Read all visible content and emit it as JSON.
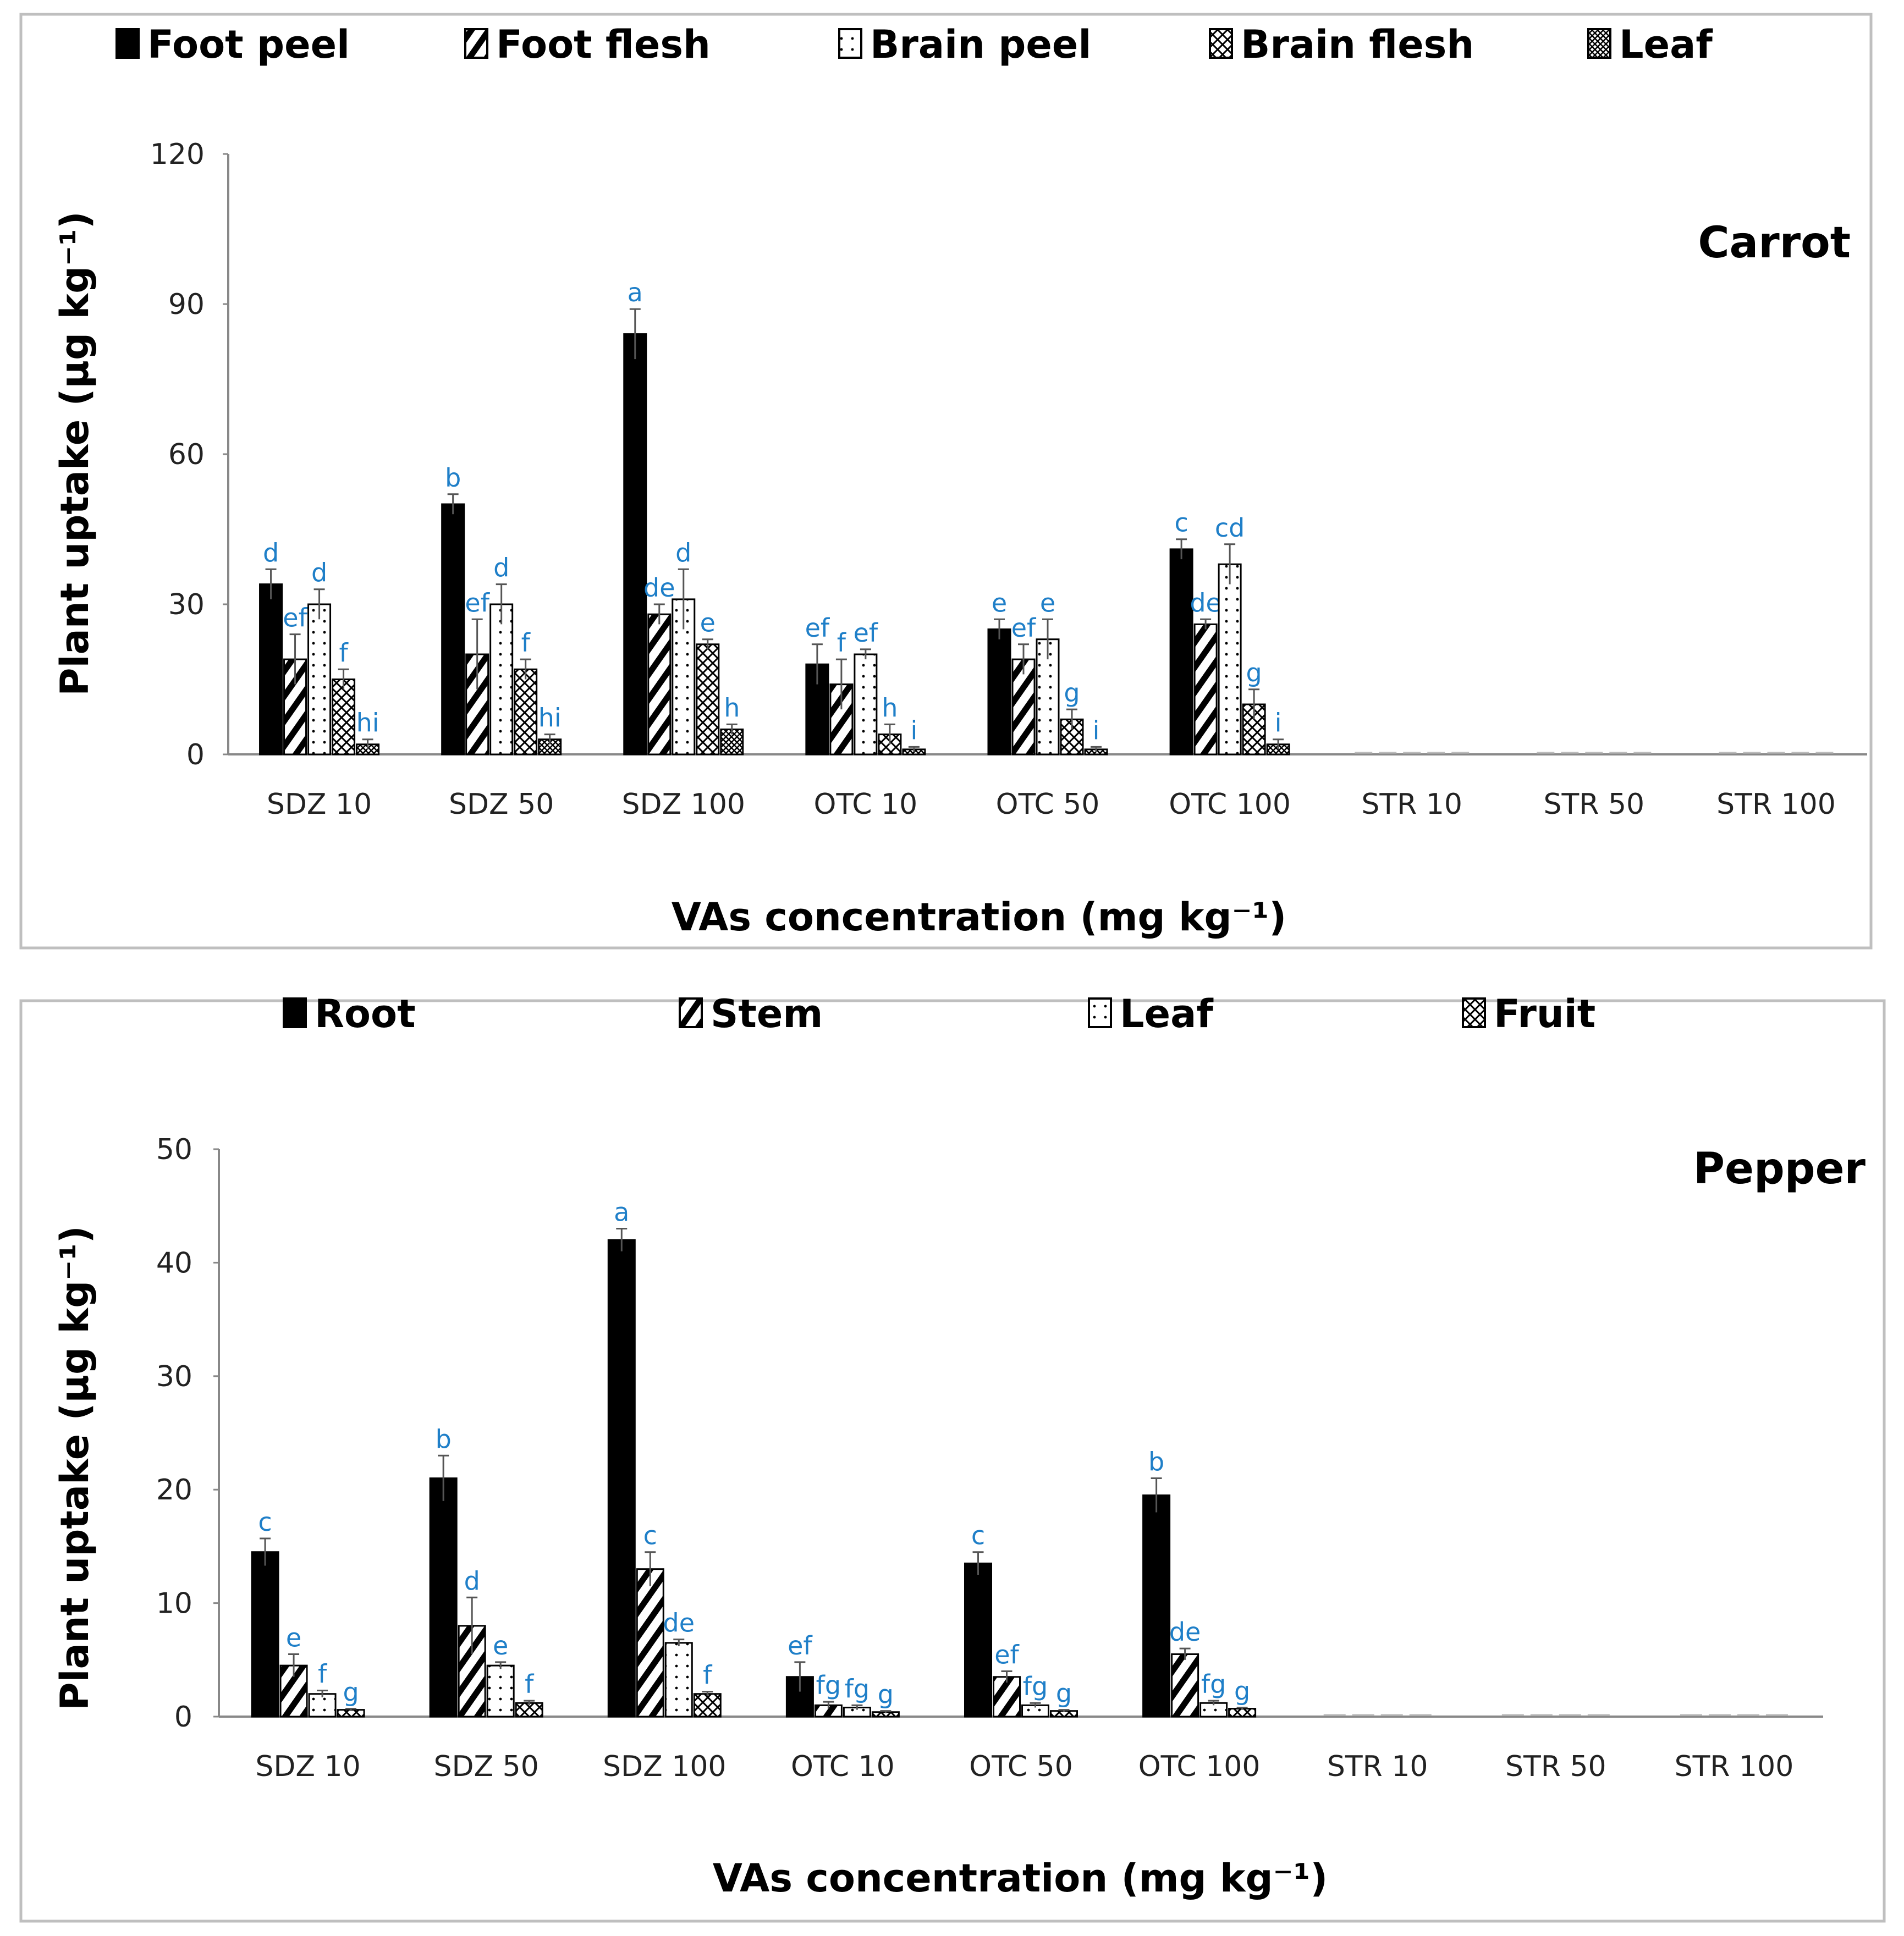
{
  "colors": {
    "bar": "#000000",
    "letter": "#1f7fc8",
    "axis": "#888888",
    "frame": "#bfbfbf",
    "error": "#555555"
  },
  "chart_data": [
    {
      "type": "bar",
      "title": "Carrot",
      "xlabel": "VAs concentration (mg kg⁻¹)",
      "ylabel": "Plant uptake (µg kg⁻¹)",
      "ylim": [
        0,
        120
      ],
      "yticks": [
        "0",
        "30",
        "60",
        "90",
        "120"
      ],
      "legend_position": "top",
      "categories": [
        "SDZ 10",
        "SDZ 50",
        "SDZ 100",
        "OTC 10",
        "OTC 50",
        "OTC 100",
        "STR 10",
        "STR 50",
        "STR 100"
      ],
      "series": [
        {
          "name": "Foot peel",
          "pattern": "solid",
          "values": [
            34,
            50,
            84,
            18,
            25,
            41,
            0,
            0,
            0
          ],
          "errors": [
            3,
            2,
            5,
            4,
            2,
            2,
            0,
            0,
            0
          ],
          "letters": [
            "d",
            "b",
            "a",
            "ef",
            "e",
            "c",
            "",
            "",
            ""
          ]
        },
        {
          "name": "Foot flesh",
          "pattern": "diag",
          "values": [
            19,
            20,
            28,
            14,
            19,
            26,
            0,
            0,
            0
          ],
          "errors": [
            5,
            7,
            2,
            5,
            3,
            1,
            0,
            0,
            0
          ],
          "letters": [
            "ef",
            "ef",
            "de",
            "f",
            "ef",
            "de",
            "",
            "",
            ""
          ]
        },
        {
          "name": "Brain peel",
          "pattern": "dots",
          "values": [
            30,
            30,
            31,
            20,
            23,
            38,
            0,
            0,
            0
          ],
          "errors": [
            3,
            4,
            6,
            1,
            4,
            4,
            0,
            0,
            0
          ],
          "letters": [
            "d",
            "d",
            "d",
            "ef",
            "e",
            "cd",
            "",
            "",
            ""
          ]
        },
        {
          "name": "Brain flesh",
          "pattern": "cross",
          "values": [
            15,
            17,
            22,
            4,
            7,
            10,
            0,
            0,
            0
          ],
          "errors": [
            2,
            2,
            1,
            2,
            2,
            3,
            0,
            0,
            0
          ],
          "letters": [
            "f",
            "f",
            "e",
            "h",
            "g",
            "g",
            "",
            "",
            ""
          ]
        },
        {
          "name": "Leaf",
          "pattern": "grid",
          "values": [
            2,
            3,
            5,
            1,
            1,
            2,
            0,
            0,
            0
          ],
          "errors": [
            1,
            1,
            1,
            0.5,
            0.5,
            1,
            0,
            0,
            0
          ],
          "letters": [
            "hi",
            "hi",
            "h",
            "i",
            "i",
            "i",
            "",
            "",
            ""
          ]
        }
      ]
    },
    {
      "type": "bar",
      "title": "Pepper",
      "xlabel": "VAs concentration (mg kg⁻¹)",
      "ylabel": "Plant uptake (µg kg⁻¹)",
      "ylim": [
        0,
        50
      ],
      "yticks": [
        "0",
        "10",
        "20",
        "30",
        "40",
        "50"
      ],
      "legend_position": "top",
      "categories": [
        "SDZ 10",
        "SDZ 50",
        "SDZ 100",
        "OTC 10",
        "OTC 50",
        "OTC 100",
        "STR 10",
        "STR 50",
        "STR 100"
      ],
      "series": [
        {
          "name": "Root",
          "pattern": "solid",
          "values": [
            14.5,
            21,
            42,
            3.5,
            13.5,
            19.5,
            0,
            0,
            0
          ],
          "errors": [
            1.2,
            2,
            1,
            1.3,
            1,
            1.5,
            0,
            0,
            0
          ],
          "letters": [
            "c",
            "b",
            "a",
            "ef",
            "c",
            "b",
            "",
            "",
            ""
          ]
        },
        {
          "name": "Stem",
          "pattern": "diag",
          "values": [
            4.5,
            8,
            13,
            1,
            3.5,
            5.5,
            0,
            0,
            0
          ],
          "errors": [
            1,
            2.5,
            1.5,
            0.3,
            0.5,
            0.5,
            0,
            0,
            0
          ],
          "letters": [
            "e",
            "d",
            "c",
            "fg",
            "ef",
            "de",
            "",
            "",
            ""
          ]
        },
        {
          "name": "Leaf",
          "pattern": "dots",
          "values": [
            2,
            4.5,
            6.5,
            0.8,
            1,
            1.2,
            0,
            0,
            0
          ],
          "errors": [
            0.3,
            0.3,
            0.3,
            0.2,
            0.2,
            0.2,
            0,
            0,
            0
          ],
          "letters": [
            "f",
            "e",
            "de",
            "fg",
            "fg",
            "fg",
            "",
            "",
            ""
          ]
        },
        {
          "name": "Fruit",
          "pattern": "cross",
          "values": [
            0.6,
            1.2,
            2,
            0.4,
            0.5,
            0.7,
            0,
            0,
            0
          ],
          "errors": [
            0.1,
            0.2,
            0.2,
            0.1,
            0.1,
            0.1,
            0,
            0,
            0
          ],
          "letters": [
            "g",
            "f",
            "f",
            "g",
            "g",
            "g",
            "",
            "",
            ""
          ]
        }
      ]
    }
  ]
}
